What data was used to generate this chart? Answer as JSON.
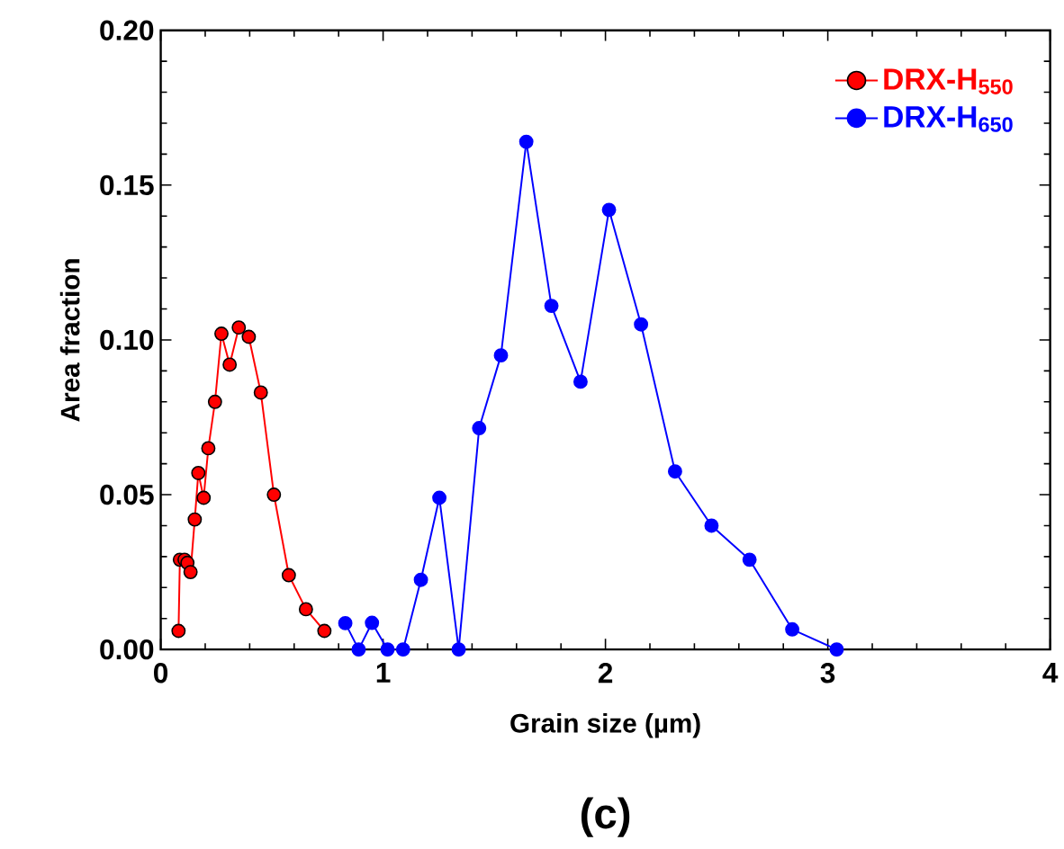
{
  "chart_data": {
    "type": "line",
    "xlabel": "Grain size (µm)",
    "ylabel": "Area fraction",
    "annotations": [
      "(c)"
    ],
    "xlim": [
      0,
      4
    ],
    "xticks": [
      0,
      1,
      2,
      3,
      4
    ],
    "ylim": [
      0,
      0.2
    ],
    "yticks": [
      {
        "value": 0,
        "label": "0.00"
      },
      {
        "value": 0.05,
        "label": "0.05"
      },
      {
        "value": 0.1,
        "label": "0.10"
      },
      {
        "value": 0.15,
        "label": "0.15"
      },
      {
        "value": 0.2,
        "label": "0.20"
      }
    ],
    "grid": false,
    "legend": "top right",
    "marker": "circle",
    "line_style": "solid",
    "series": [
      {
        "name": "DRX-H$_{550}$",
        "color": "#ff0000",
        "x": [
          0.08,
          0.086,
          0.107,
          0.12,
          0.134,
          0.153,
          0.169,
          0.193,
          0.214,
          0.244,
          0.273,
          0.31,
          0.351,
          0.396,
          0.45,
          0.509,
          0.576,
          0.653,
          0.736
        ],
        "values": [
          0.006,
          0.029,
          0.029,
          0.028,
          0.025,
          0.042,
          0.057,
          0.049,
          0.065,
          0.08,
          0.102,
          0.092,
          0.104,
          0.101,
          0.083,
          0.05,
          0.024,
          0.013,
          0.006
        ]
      },
      {
        "name": "DRX-H$_{650}$",
        "color": "#0000ff",
        "x": [
          0.83,
          0.89,
          0.95,
          1.02,
          1.09,
          1.17,
          1.253,
          1.34,
          1.432,
          1.53,
          1.644,
          1.757,
          1.888,
          2.016,
          2.16,
          2.313,
          2.477,
          2.648,
          2.84,
          3.04
        ],
        "values": [
          0.0085,
          0,
          0.0086,
          0,
          0,
          0.0225,
          0.049,
          0,
          0.0715,
          0.095,
          0.164,
          0.111,
          0.0865,
          0.142,
          0.105,
          0.0575,
          0.04,
          0.029,
          0.0065,
          0
        ]
      }
    ]
  }
}
